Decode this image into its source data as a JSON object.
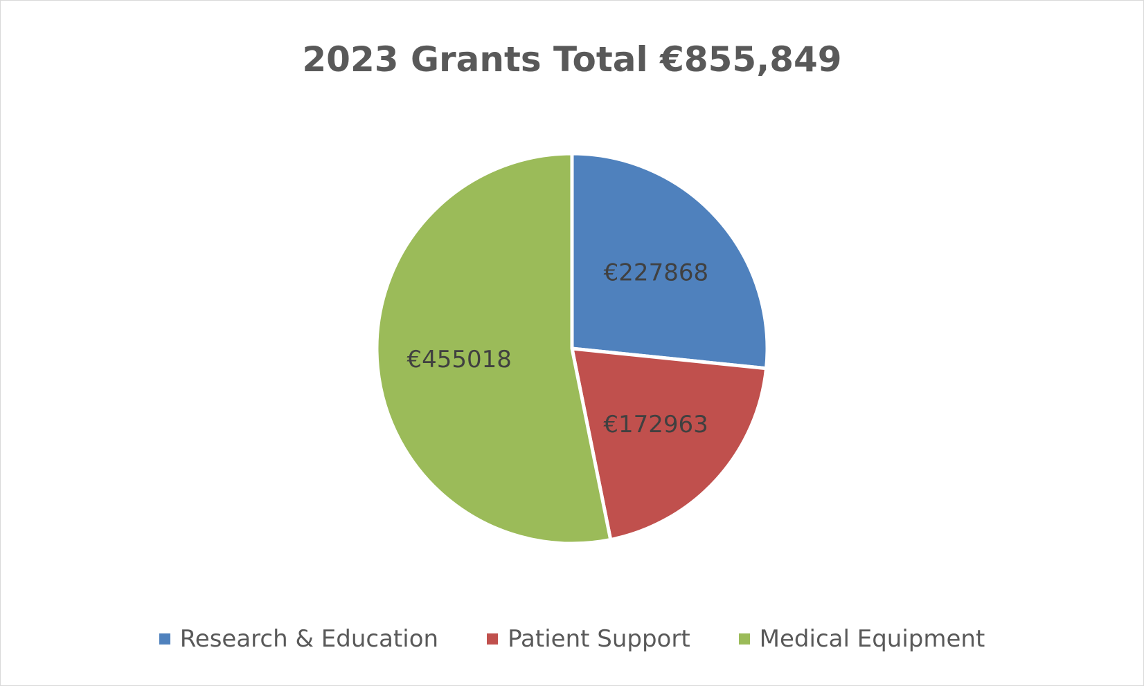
{
  "chart_data": {
    "type": "pie",
    "title": "2023 Grants Total €855,849",
    "categories": [
      "Research & Education",
      "Patient Support",
      "Medical Equipment"
    ],
    "values": [
      227868,
      172963,
      455018
    ],
    "data_labels": [
      "€227868",
      "€172963",
      "€455018"
    ],
    "colors": [
      "#4f81bd",
      "#c0504d",
      "#9bbb59"
    ],
    "legend_position": "bottom",
    "start_angle_deg": 0,
    "direction": "clockwise"
  }
}
